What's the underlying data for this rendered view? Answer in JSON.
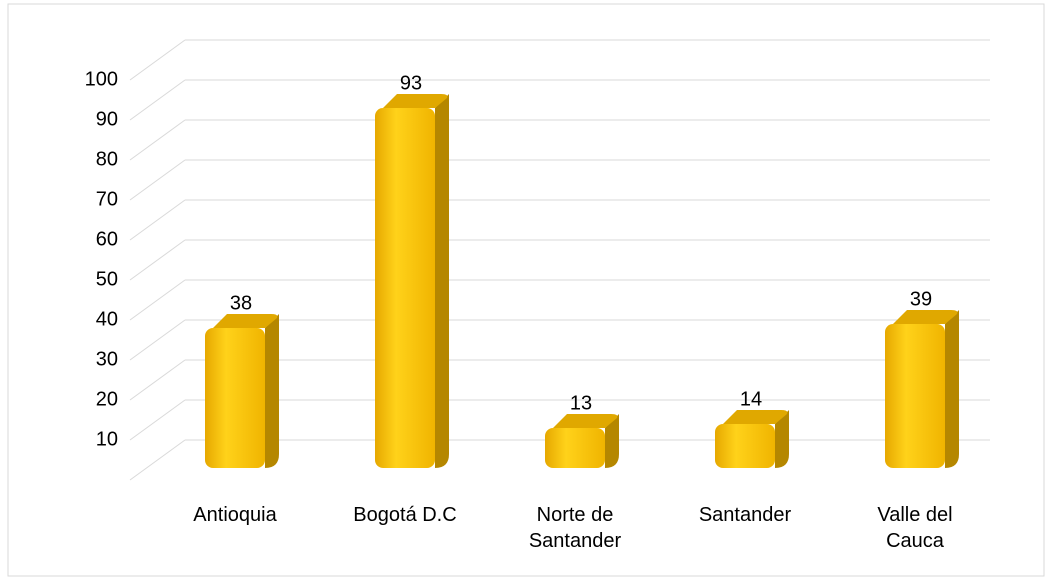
{
  "chart_data": {
    "type": "bar",
    "categories": [
      "Antioquia",
      "Bogotá D.C",
      "Norte de Santander",
      "Santander",
      "Valle del Cauca"
    ],
    "values": [
      38,
      93,
      13,
      14,
      39
    ],
    "color": "#ffc000",
    "ylim": [
      0,
      100
    ],
    "yticks": [
      10,
      20,
      30,
      40,
      50,
      60,
      70,
      80,
      90,
      100
    ],
    "grid": true
  }
}
